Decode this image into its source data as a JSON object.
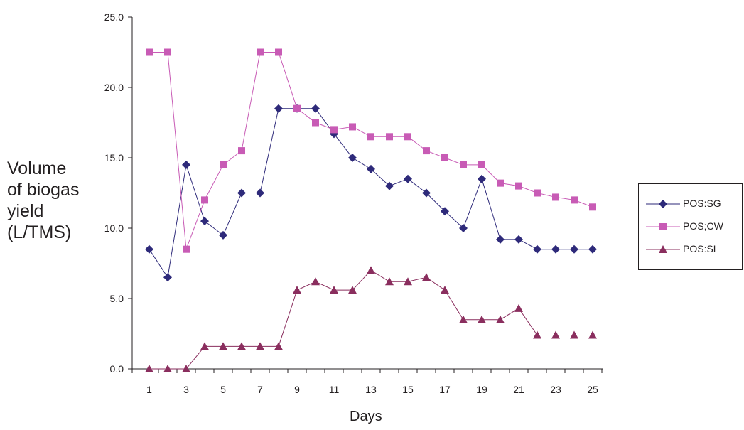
{
  "chart_data": {
    "type": "line",
    "title": "",
    "xlabel": "Days",
    "ylabel": [
      "Volume",
      "of biogas",
      "yield",
      "(L/TMS)"
    ],
    "x": [
      1,
      2,
      3,
      4,
      5,
      6,
      7,
      8,
      9,
      10,
      11,
      12,
      13,
      14,
      15,
      16,
      17,
      18,
      19,
      20,
      21,
      22,
      23,
      24,
      25
    ],
    "x_tick_labels": [
      "1",
      "3",
      "5",
      "7",
      "9",
      "11",
      "13",
      "15",
      "17",
      "19",
      "21",
      "23",
      "25"
    ],
    "y_tick_labels": [
      "0.0",
      "5.0",
      "10.0",
      "15.0",
      "20.0",
      "25.0"
    ],
    "ylim": [
      0,
      25
    ],
    "grid": false,
    "legend_position": "right",
    "series": [
      {
        "name": "POS:SG",
        "marker": "diamond",
        "color": "#2e2a7a",
        "values": [
          8.5,
          6.5,
          14.5,
          10.5,
          9.5,
          12.5,
          12.5,
          18.5,
          18.5,
          18.5,
          16.7,
          15.0,
          14.2,
          13.0,
          13.5,
          12.5,
          11.2,
          10.0,
          13.5,
          9.2,
          9.2,
          8.5,
          8.5,
          8.5,
          8.5
        ]
      },
      {
        "name": "POS;CW",
        "marker": "square",
        "color": "#c85bb5",
        "values": [
          22.5,
          22.5,
          8.5,
          12.0,
          14.5,
          15.5,
          22.5,
          22.5,
          18.5,
          17.5,
          17.0,
          17.2,
          16.5,
          16.5,
          16.5,
          15.5,
          15.0,
          14.5,
          14.5,
          13.2,
          13.0,
          12.5,
          12.2,
          12.0,
          11.5
        ]
      },
      {
        "name": "POS:SL",
        "marker": "triangle",
        "color": "#8a2e5e",
        "values": [
          0.0,
          0.0,
          0.0,
          1.6,
          1.6,
          1.6,
          1.6,
          1.6,
          5.6,
          6.2,
          5.6,
          5.6,
          7.0,
          6.2,
          6.2,
          6.5,
          5.6,
          3.5,
          3.5,
          3.5,
          4.3,
          2.4,
          2.4,
          2.4,
          2.4
        ]
      }
    ]
  }
}
